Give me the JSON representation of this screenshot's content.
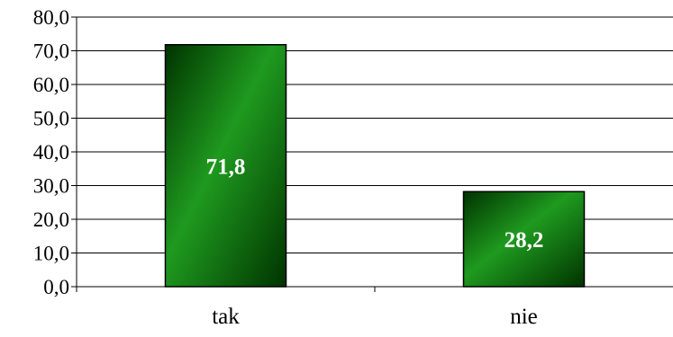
{
  "chart_data": {
    "type": "bar",
    "categories": [
      "tak",
      "nie"
    ],
    "values": [
      71.8,
      28.2
    ],
    "value_labels": [
      "71,8",
      "28,2"
    ],
    "y_tick_values": [
      0,
      10,
      20,
      30,
      40,
      50,
      60,
      70,
      80
    ],
    "y_tick_labels": [
      "0,0",
      "10,0",
      "20,0",
      "30,0",
      "40,0",
      "50,0",
      "60,0",
      "70,0",
      "80,0"
    ],
    "ylim": [
      0,
      80
    ],
    "title": "",
    "xlabel": "",
    "ylabel": "",
    "grid": true,
    "legend": "none",
    "colors": {
      "bar_light": "#1f9a1f",
      "bar_dark": "#003300",
      "bar_stroke": "#000000",
      "grid": "#000000",
      "axis": "#000000",
      "data_label": "#ffffff"
    }
  }
}
